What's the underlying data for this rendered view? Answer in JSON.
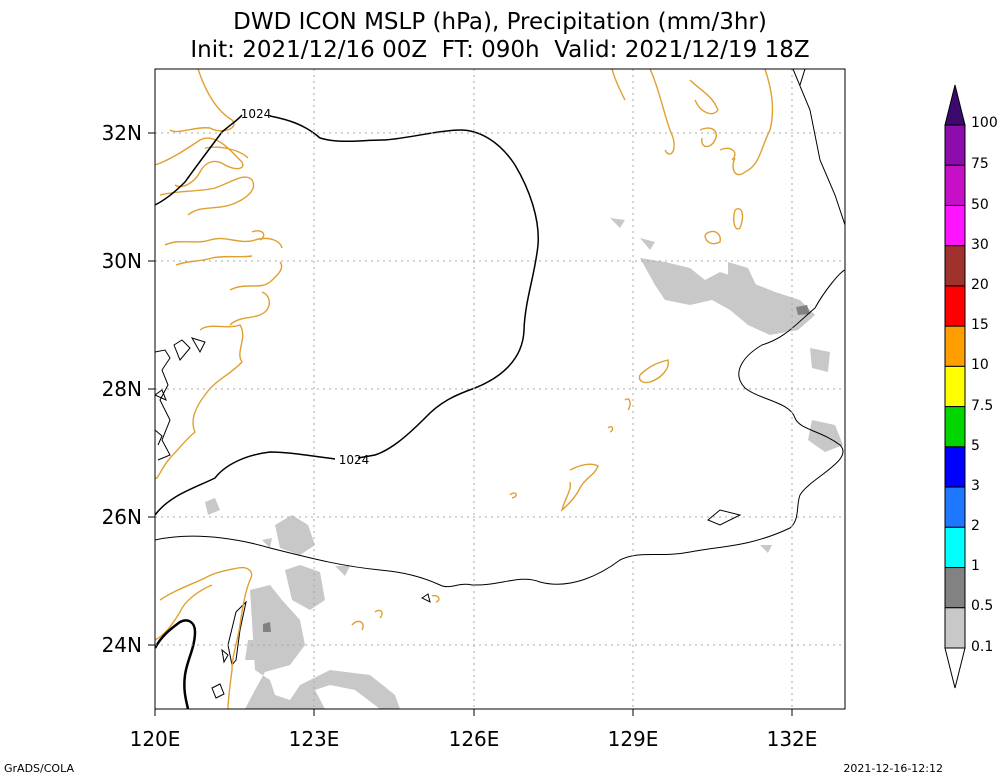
{
  "title_line1": "DWD ICON MSLP (hPa), Precipitation (mm/3hr)",
  "title_line2": "Init: 2021/12/16 00Z  FT: 090h  Valid: 2021/12/19 18Z",
  "map": {
    "lon_range": [
      120,
      133
    ],
    "lat_range": [
      23,
      33
    ],
    "lon_ticks": [
      "120E",
      "123E",
      "126E",
      "129E",
      "132E"
    ],
    "lat_ticks": [
      "32N",
      "30N",
      "28N",
      "26N",
      "24N"
    ],
    "isobar_labels": [
      "1024",
      "1024"
    ],
    "grid": true
  },
  "legend": {
    "labels": [
      "100",
      "75",
      "50",
      "30",
      "20",
      "15",
      "10",
      "7.5",
      "5",
      "3",
      "2",
      "1",
      "0.5",
      "0.1"
    ],
    "colors": [
      "#8c0dab",
      "#c80fc8",
      "#ff14ff",
      "#a0322d",
      "#ff0000",
      "#ff9e00",
      "#ffff00",
      "#00d500",
      "#0000ff",
      "#1e78ff",
      "#00ffff",
      "#828282",
      "#c8c8c8"
    ],
    "top_arrow_color": "#3c0a6e"
  },
  "footer_left": "GrADS/COLA",
  "footer_right": "2021-12-16-12:12"
}
